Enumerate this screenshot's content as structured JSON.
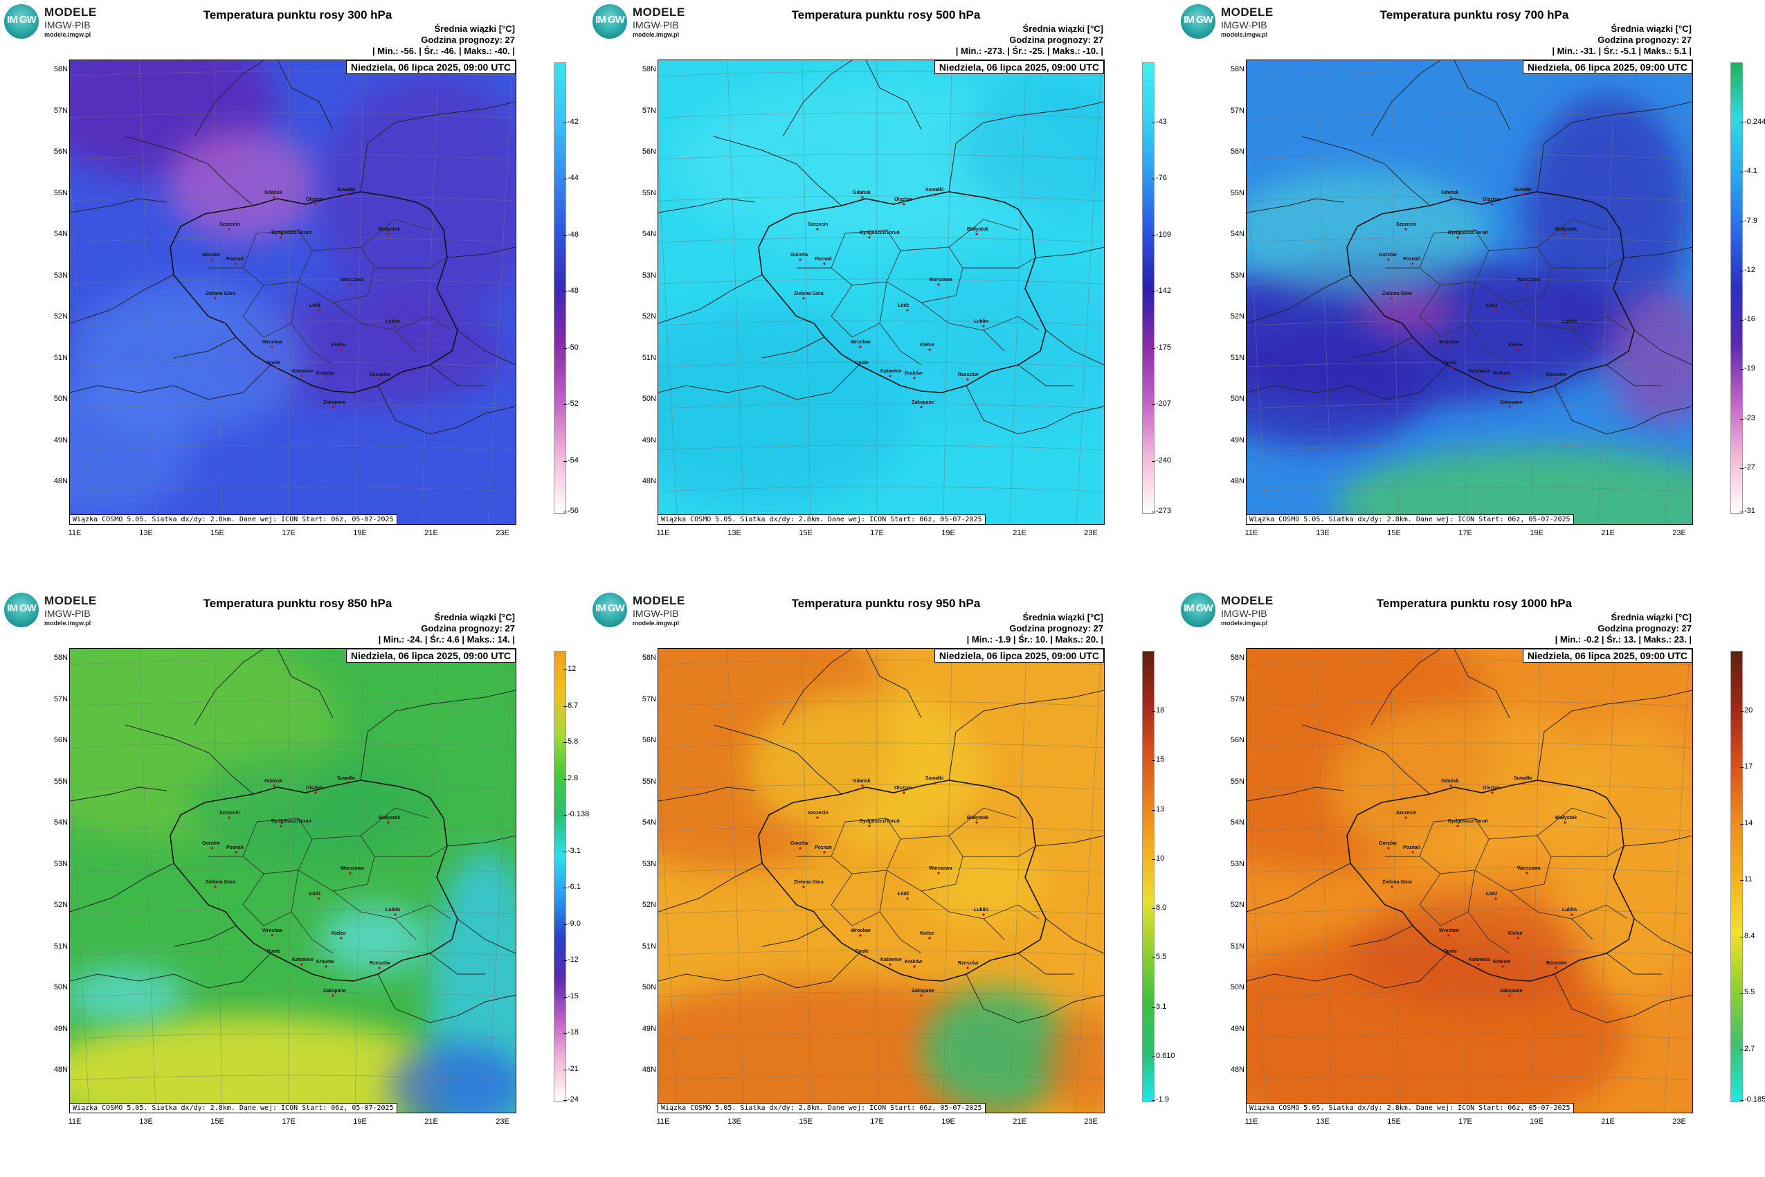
{
  "logo": {
    "line1": "MODELE",
    "line2": "IMGW-PIB",
    "line3": "modele.imgw.pl",
    "mark": "IM GW"
  },
  "common": {
    "avg_label": "Średnia wiązki [°C]",
    "hour_label": "Godzina prognozy: 27",
    "date": "Niedziela, 06 lipca 2025, 09:00 UTC",
    "footer": "Wiązka COSMO 5.05. Siatka dx/dy: 2.8km. Dane wej: ICON Start: 06z, 05-07-2025",
    "lat_labels": [
      "58N",
      "57N",
      "56N",
      "55N",
      "54N",
      "53N",
      "52N",
      "51N",
      "50N",
      "49N",
      "48N"
    ],
    "lon_labels": [
      "11E",
      "13E",
      "15E",
      "17E",
      "19E",
      "21E",
      "23E"
    ]
  },
  "cities": [
    "Gdańsk",
    "Olsztyn",
    "Suwałki",
    "Szczecin",
    "Bydgoszcz/Toruń",
    "Białystok",
    "Gorzów",
    "Poznań",
    "Warszawa",
    "Zielona Góra",
    "Łódź",
    "Lublin",
    "Wrocław",
    "Kielce",
    "Opole",
    "Katowice",
    "Kraków",
    "Rzeszów",
    "Zakopane"
  ],
  "panels": [
    {
      "title": "Temperatura punktu rosy 300 hPa",
      "stats": "| Min.:   -56. | Śr.:   -46. | Maks.:   -40. |",
      "min": -56,
      "mean": -46,
      "max": -40,
      "colorbar_ticks": [
        "-42",
        "-44",
        "-46",
        "-48",
        "-50",
        "-52",
        "-54",
        "-56"
      ],
      "colors": {
        "base": "#3b55e0",
        "a": "#5a2bb8",
        "b": "#c060c8",
        "c": "#4d7df0"
      }
    },
    {
      "title": "Temperatura punktu rosy 500 hPa",
      "stats": "| Min.:  -273. | Śr.:   -25. | Maks.:   -10. |",
      "min": -273,
      "mean": -25,
      "max": -10,
      "colorbar_ticks": [
        "-43",
        "-76",
        "-109",
        "-142",
        "-175",
        "-207",
        "-240",
        "-273"
      ],
      "colors": {
        "base": "#2ed8f0",
        "a": "#1fbce6",
        "b": "#48e4f4",
        "c": "#2ac8ee"
      }
    },
    {
      "title": "Temperatura punktu rosy 700 hPa",
      "stats": "| Min.:   -31. | Śr.:   -5.1 | Maks.:   5.1 |",
      "min": -31,
      "mean": -5.1,
      "max": 5.1,
      "colorbar_ticks": [
        "-0.244",
        "-4.1",
        "-7.9",
        "-12",
        "-16",
        "-19",
        "-23",
        "-27",
        "-31"
      ],
      "colors": {
        "base": "#2f8ae6",
        "a": "#3324b0",
        "b": "#a03aa8",
        "c": "#44c07a"
      }
    },
    {
      "title": "Temperatura punktu rosy 850 hPa",
      "stats": "| Min.:   -24. | Śr.:   4.6 | Maks.:   14. |",
      "min": -24,
      "mean": 4.6,
      "max": 14,
      "colorbar_ticks": [
        "12",
        "8.7",
        "5.8",
        "2.8",
        "-0.138",
        "-3.1",
        "-6.1",
        "-9.0",
        "-12",
        "-15",
        "-18",
        "-21",
        "-24"
      ],
      "colors": {
        "base": "#3fb84a",
        "a": "#7ccc3a",
        "b": "#e0e030",
        "c": "#37c8e8"
      }
    },
    {
      "title": "Temperatura punktu rosy 950 hPa",
      "stats": "| Min.:   -1.9 | Śr.:   10. | Maks.:   20. |",
      "min": -1.9,
      "mean": 10,
      "max": 20,
      "colorbar_ticks": [
        "18",
        "15",
        "13",
        "10",
        "8.0",
        "5.5",
        "3.1",
        "0.610",
        "-1.9"
      ],
      "colors": {
        "base": "#f0a826",
        "a": "#e2701a",
        "b": "#f4cf2a",
        "c": "#43b86a"
      }
    },
    {
      "title": "Temperatura punktu rosy 1000 hPa",
      "stats": "| Min.:   -0.2 | Śr.:   13. | Maks.:   23. |",
      "min": -0.2,
      "mean": 13,
      "max": 23,
      "colorbar_ticks": [
        "20",
        "17",
        "14",
        "11",
        "8.4",
        "5.5",
        "2.7",
        "-0.185"
      ],
      "colors": {
        "base": "#ee8e22",
        "a": "#e06418",
        "b": "#f4b42a",
        "c": "#d4501a"
      }
    }
  ]
}
